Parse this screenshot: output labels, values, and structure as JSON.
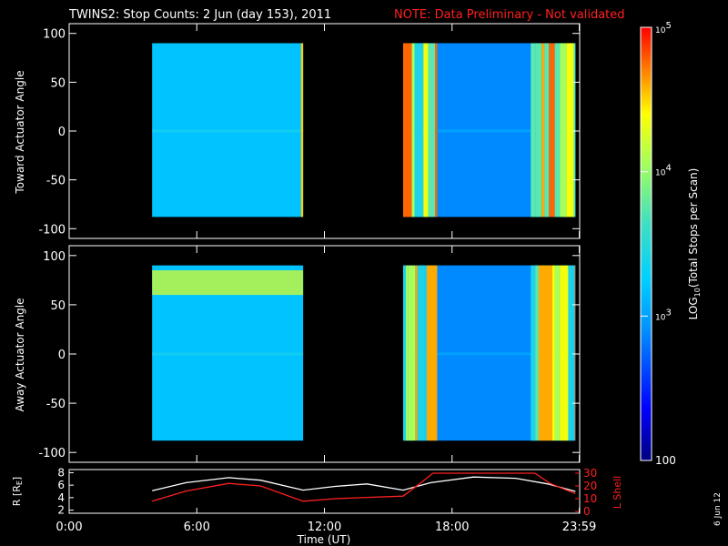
{
  "header": {
    "title": "TWINS2: Stop Counts:  2 Jun (day 153), 2011",
    "note": "NOTE: Data Preliminary - Not validated"
  },
  "side_date": "6 Jun 12",
  "colors": {
    "background": "#000000",
    "axes": "#ffffff",
    "note": "#ff2020",
    "r_line": "#ffffff",
    "lshell_line": "#ff2020",
    "colorscale": [
      "#000080",
      "#0000ff",
      "#0080ff",
      "#00c8ff",
      "#40e0d0",
      "#a0ff60",
      "#ffff00",
      "#ff8000",
      "#ff0000"
    ]
  },
  "chart_data": [
    {
      "type": "heatmap",
      "name": "toward",
      "ylabel": "Toward Actuator Angle",
      "ylim": [
        -110,
        110
      ],
      "yticks": [
        "100",
        "50",
        "0",
        "-50",
        "-100"
      ],
      "ytick_values": [
        100,
        50,
        0,
        -50,
        -100
      ],
      "xlim": [
        0,
        24
      ],
      "blocks": [
        {
          "start_hour": 3.9,
          "end_hour": 11.0,
          "angle_range": [
            -88,
            90
          ],
          "dominant_log_counts": 3.1,
          "edge_hour": 10.9,
          "edge_log_counts": 4.4
        },
        {
          "start_hour": 15.7,
          "end_hour": 23.8,
          "angle_range": [
            -88,
            90
          ],
          "dominant_log_counts": 2.8,
          "variable_columns_log_counts": [
            3.3,
            3.6,
            3.9,
            4.2,
            4.5,
            4.7
          ]
        }
      ]
    },
    {
      "type": "heatmap",
      "name": "away",
      "ylabel": "Away Actuator Angle",
      "ylim": [
        -110,
        110
      ],
      "yticks": [
        "100",
        "50",
        "0",
        "-50",
        "-100"
      ],
      "ytick_values": [
        100,
        50,
        0,
        -50,
        -100
      ],
      "xlim": [
        0,
        24
      ],
      "blocks": [
        {
          "start_hour": 3.9,
          "end_hour": 11.0,
          "angle_range": [
            -88,
            90
          ],
          "dominant_log_counts": 3.1,
          "band_angle_range": [
            60,
            85
          ],
          "band_log_counts": 4.1
        },
        {
          "start_hour": 15.7,
          "end_hour": 23.8,
          "angle_range": [
            -88,
            90
          ],
          "dominant_log_counts": 2.8,
          "variable_columns_log_counts": [
            3.3,
            3.6,
            3.9,
            4.2,
            4.5,
            4.7
          ]
        }
      ]
    },
    {
      "type": "line",
      "name": "orbit",
      "xlabel": "Time (UT)",
      "xticks": [
        "0:00",
        "6:00",
        "12:00",
        "18:00",
        "23:59"
      ],
      "xtick_values": [
        0,
        6,
        12,
        18,
        23.98
      ],
      "xlim": [
        0,
        24
      ],
      "left_axis": {
        "label": "R [RE]",
        "ylim": [
          1.5,
          8.5
        ],
        "ticks": [
          "8",
          "6",
          "4",
          "2"
        ],
        "tick_values": [
          8,
          6,
          4,
          2
        ]
      },
      "right_axis": {
        "label": "L Shell",
        "ylim": [
          0,
          30
        ],
        "ticks": [
          "30",
          "20",
          "10",
          "0"
        ],
        "tick_values": [
          30,
          20,
          10,
          0
        ]
      },
      "series": [
        {
          "axis": "left",
          "color": "#ffffff",
          "x": [
            3.9,
            5.5,
            7.5,
            9.0,
            11.0,
            12.5,
            14.0,
            15.7,
            17.0,
            19.0,
            21.0,
            22.5,
            23.8
          ],
          "y": [
            5.1,
            6.4,
            7.2,
            6.8,
            5.2,
            5.8,
            6.2,
            5.2,
            6.4,
            7.3,
            7.1,
            6.2,
            5.0
          ]
        },
        {
          "axis": "right",
          "color": "#ff2020",
          "x": [
            3.9,
            5.5,
            7.5,
            9.0,
            11.0,
            12.5,
            14.0,
            15.7,
            16.5,
            17.1,
            21.9,
            22.6,
            23.2,
            23.8
          ],
          "y": [
            8,
            16,
            22,
            20,
            8,
            10,
            11,
            12,
            22,
            30,
            30,
            22,
            18,
            14
          ]
        }
      ]
    }
  ],
  "colorbar": {
    "label_prefix": "LOG",
    "label_sub": "10",
    "label_suffix": "(Total Stops per Scan)",
    "ticks": [
      {
        "base": "10",
        "exp": "5"
      },
      {
        "base": "10",
        "exp": "4"
      },
      {
        "base": "10",
        "exp": "3"
      },
      {
        "base": "100",
        "exp": ""
      }
    ],
    "log_range": [
      2,
      5
    ]
  },
  "orbit_labels": {
    "r_prefix": "R [R",
    "r_sub": "E",
    "r_suffix": "]",
    "lshell": "L Shell"
  }
}
